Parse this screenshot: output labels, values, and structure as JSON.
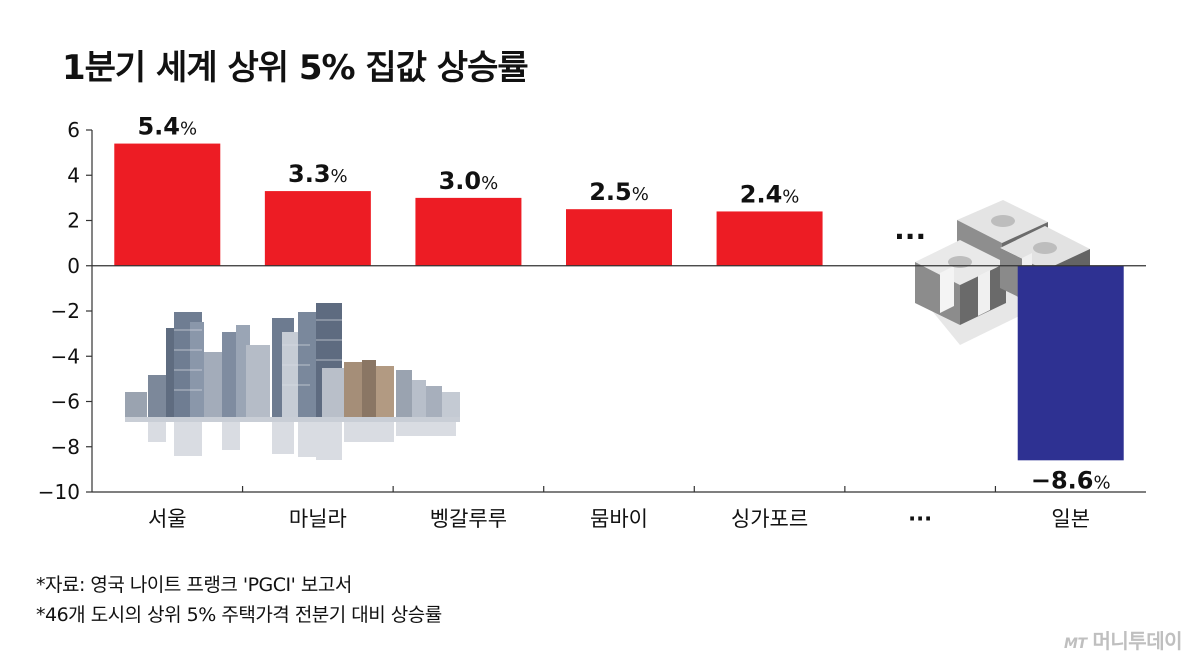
{
  "chart_data": {
    "type": "bar",
    "title": "1분기 세계 상위 5% 집값 상승률",
    "categories": [
      "서울",
      "마닐라",
      "벵갈루루",
      "뭄바이",
      "싱가포르",
      "···",
      "일본"
    ],
    "values": [
      5.4,
      3.3,
      3.0,
      2.5,
      2.4,
      null,
      -8.6
    ],
    "data_labels": [
      {
        "number": "5.4",
        "unit": "%"
      },
      {
        "number": "3.3",
        "unit": "%"
      },
      {
        "number": "3.0",
        "unit": "%"
      },
      {
        "number": "2.5",
        "unit": "%"
      },
      {
        "number": "2.4",
        "unit": "%"
      },
      {
        "number": "···",
        "unit": ""
      },
      {
        "number": "−8.6",
        "unit": "%"
      }
    ],
    "y_ticks": [
      "6",
      "4",
      "2",
      "0",
      "−2",
      "−4",
      "−6",
      "−8",
      "−10"
    ],
    "y_tick_values": [
      6,
      4,
      2,
      0,
      -2,
      -4,
      -6,
      -8,
      -10
    ],
    "ylim": [
      -10,
      6
    ],
    "grid": false,
    "colors": {
      "positive": "#ed1c24",
      "negative": "#2e3192",
      "axis": "#333333"
    },
    "illustrations": [
      "city-skyline",
      "money-stacks"
    ]
  },
  "footnotes": [
    "*자료: 영국 나이트 프랭크 'PGCI' 보고서",
    "*46개 도시의 상위 5% 주택가격 전분기 대비 상승률"
  ],
  "brand": {
    "mark": "MT",
    "name": "머니투데이"
  }
}
